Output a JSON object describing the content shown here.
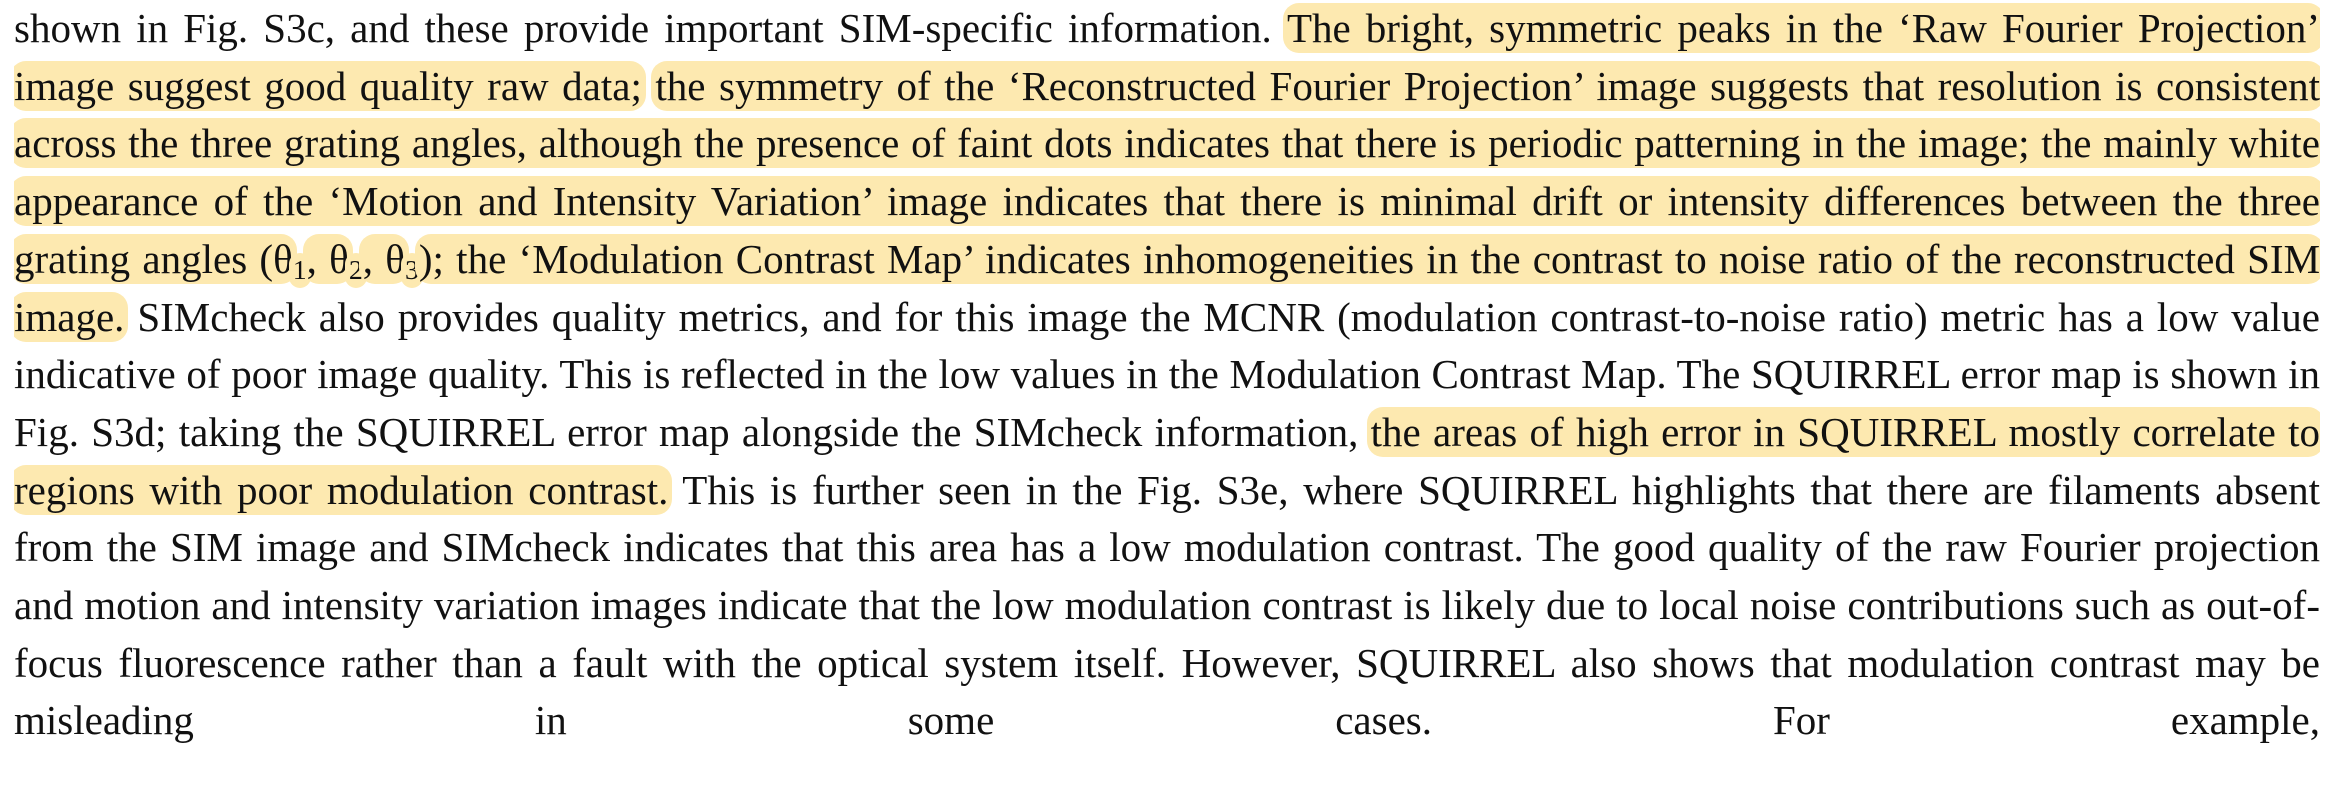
{
  "paragraph": {
    "segments": [
      {
        "text": "shown in Fig. S3c, and these provide important SIM-specific information. ",
        "highlight": false
      },
      {
        "text": "The bright, symmetric peaks in the ‘Raw Fourier Projection’ image suggest good quality raw data;",
        "highlight": true
      },
      {
        "text": " ",
        "highlight": false
      },
      {
        "text": "the symmetry of the ‘Reconstructed Fourier Projection’ image suggests that resolution is consistent across the three grating angles, although the presence of faint dots indicates that there is periodic patterning in the image; the mainly white appearance of the ‘Motion and Intensity Variation’ image indicates that there is minimal drift or intensity differences between the three grating angles (θ",
        "highlight": true
      },
      {
        "text": "1",
        "highlight": true,
        "sub": true
      },
      {
        "text": ", θ",
        "highlight": true
      },
      {
        "text": "2",
        "highlight": true,
        "sub": true
      },
      {
        "text": ", θ",
        "highlight": true
      },
      {
        "text": "3",
        "highlight": true,
        "sub": true
      },
      {
        "text": "); the ‘Modulation Contrast Map’ indicates inhomogeneities in the contrast to noise ratio of the reconstructed SIM image.",
        "highlight": true
      },
      {
        "text": " SIMcheck also provides quality metrics, and for this image the MCNR (modulation contrast-to-noise ratio) metric has a low value indicative of poor image quality. This is reflected in the low values in the Modulation Contrast Map. The SQUIRREL error map is shown in Fig. S3d; taking the SQUIRREL error map alongside the SIMcheck information, ",
        "highlight": false
      },
      {
        "text": "the areas of high error in SQUIRREL mostly correlate to regions with poor modulation contrast.",
        "highlight": true
      },
      {
        "text": " This is further seen in the Fig. S3e, where SQUIRREL highlights that there are filaments absent from the SIM image and SIMcheck indicates that this area has a low modulation contrast. The good quality of the raw Fourier projection and motion and intensity variation images indicate that the low modulation contrast is likely due to local noise contributions such as out-of-focus fluorescence rather than a fault with the optical system itself. However, SQUIRREL also shows that modulation contrast may be misleading in some cases. For example,",
        "highlight": false
      }
    ]
  }
}
